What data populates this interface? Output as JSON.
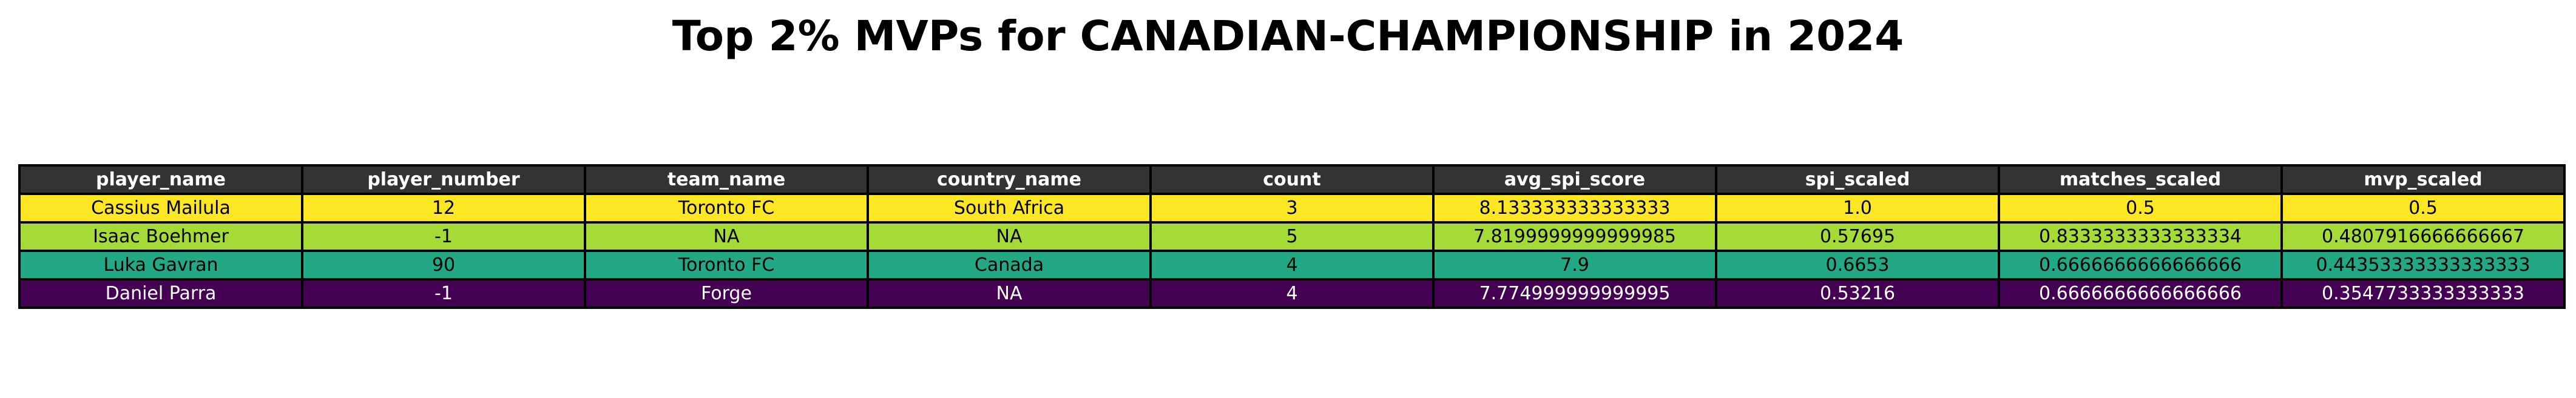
{
  "chart_data": {
    "type": "table",
    "title": "Top 2% MVPs for CANADIAN-CHAMPIONSHIP in 2024",
    "columns": [
      "player_name",
      "player_number",
      "team_name",
      "country_name",
      "count",
      "avg_spi_score",
      "spi_scaled",
      "matches_scaled",
      "mvp_scaled"
    ],
    "rows": [
      {
        "cells": [
          "Cassius Mailula",
          "12",
          "Toronto FC",
          "South Africa",
          "3",
          "8.133333333333333",
          "1.0",
          "0.5",
          "0.5"
        ],
        "fill": "#fde725",
        "text_color": "#000000"
      },
      {
        "cells": [
          "Isaac Boehmer",
          "-1",
          "NA",
          "NA",
          "5",
          "7.8199999999999985",
          "0.57695",
          "0.8333333333333334",
          "0.4807916666666667"
        ],
        "fill": "#a5db36",
        "text_color": "#000000"
      },
      {
        "cells": [
          "Luka Gavran",
          "90",
          "Toronto FC",
          "Canada",
          "4",
          "7.9",
          "0.6653",
          "0.6666666666666666",
          "0.44353333333333333"
        ],
        "fill": "#22a884",
        "text_color": "#000000"
      },
      {
        "cells": [
          "Daniel Parra",
          "-1",
          "Forge",
          "NA",
          "4",
          "7.774999999999995",
          "0.53216",
          "0.6666666666666666",
          "0.3547733333333333"
        ],
        "fill": "#440154",
        "text_color": "#ffffff"
      }
    ],
    "header_fill": "#333333",
    "header_text_color": "#ffffff",
    "colormap": "viridis"
  }
}
